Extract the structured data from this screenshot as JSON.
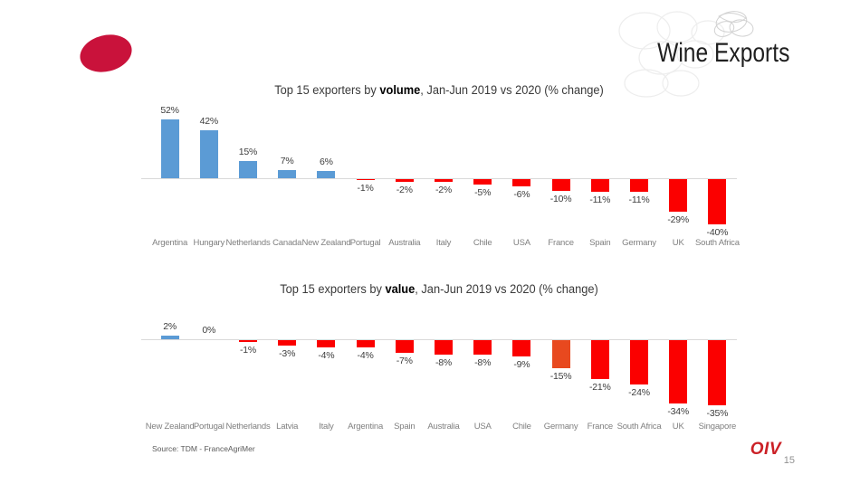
{
  "slide": {
    "title": "Wine Exports",
    "page_number": "15",
    "source": "Source: TDM - FranceAgriMer",
    "logo_text": "OIV"
  },
  "colors": {
    "positive_bar": "#5B9BD5",
    "negative_bar": "#FB0000",
    "highlight_bar": "#E8491F",
    "axis_line": "#D9D9D9",
    "value_label": "#3d3d3d",
    "category_label": "#7F7F7F",
    "ellipse": "#C9123B",
    "logo_red": "#CB2026"
  },
  "chart_data": [
    {
      "type": "bar",
      "title": {
        "prefix": "Top 15 exporters by ",
        "bold": "volume",
        "suffix": ", Jan-Jun 2019 vs 2020 (% change)"
      },
      "unit": "%",
      "categories": [
        "Argentina",
        "Hungary",
        "Netherlands",
        "Canada",
        "New Zealand",
        "Portugal",
        "Australia",
        "Italy",
        "Chile",
        "USA",
        "France",
        "Spain",
        "Germany",
        "UK",
        "South Africa"
      ],
      "values": [
        52,
        42,
        15,
        7,
        6,
        -1,
        -2,
        -2,
        -5,
        -6,
        -10,
        -11,
        -11,
        -29,
        -40
      ],
      "labels": [
        "52%",
        "42%",
        "15%",
        "7%",
        "6%",
        "-1%",
        "-2%",
        "-2%",
        "-5%",
        "-6%",
        "-10%",
        "-11%",
        "-11%",
        "-29%",
        "-40%"
      ],
      "ylim": [
        -45,
        56
      ],
      "grid": false,
      "legend": false
    },
    {
      "type": "bar",
      "title": {
        "prefix": "Top 15 exporters by ",
        "bold": "value",
        "suffix": ", Jan-Jun 2019 vs 2020 (% change)"
      },
      "unit": "%",
      "categories": [
        "New Zealand",
        "Portugal",
        "Netherlands",
        "Latvia",
        "Italy",
        "Argentina",
        "Spain",
        "Australia",
        "USA",
        "Chile",
        "Germany",
        "France",
        "South Africa",
        "UK",
        "Singapore"
      ],
      "values": [
        2,
        0,
        -1,
        -3,
        -4,
        -4,
        -7,
        -8,
        -8,
        -9,
        -15,
        -21,
        -24,
        -34,
        -35
      ],
      "labels": [
        "2%",
        "0%",
        "-1%",
        "-3%",
        "-4%",
        "-4%",
        "-7%",
        "-8%",
        "-8%",
        "-9%",
        "-15%",
        "-21%",
        "-24%",
        "-34%",
        "-35%"
      ],
      "highlight_index": 10,
      "ylim": [
        -40,
        8
      ],
      "grid": false,
      "legend": false
    }
  ]
}
